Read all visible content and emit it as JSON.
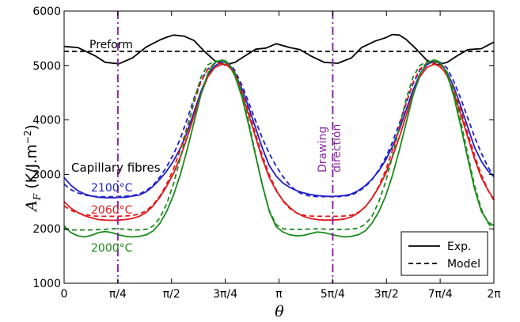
{
  "chart_data": {
    "type": "line",
    "title": "",
    "xlabel": "θ",
    "ylabel_main": "A",
    "ylabel_sub": "F",
    "ylabel_unit": " (K/J.m",
    "ylabel_exp": "−2",
    "ylabel_close": ")",
    "xlim": [
      0,
      6.2832
    ],
    "ylim": [
      1000,
      6000
    ],
    "x_ticks": [
      {
        "value": 0,
        "label": "0"
      },
      {
        "value": 0.7854,
        "label": "π/4"
      },
      {
        "value": 1.5708,
        "label": "π/2"
      },
      {
        "value": 2.3562,
        "label": "3π/4"
      },
      {
        "value": 3.1416,
        "label": "π"
      },
      {
        "value": 3.927,
        "label": "5π/4"
      },
      {
        "value": 4.7124,
        "label": "3π/2"
      },
      {
        "value": 5.4978,
        "label": "7π/4"
      },
      {
        "value": 6.2832,
        "label": "2π"
      }
    ],
    "y_ticks": [
      {
        "value": 1000,
        "label": "1000"
      },
      {
        "value": 2000,
        "label": "2000"
      },
      {
        "value": 3000,
        "label": "3000"
      },
      {
        "value": 4000,
        "label": "4000"
      },
      {
        "value": 5000,
        "label": "5000"
      },
      {
        "value": 6000,
        "label": "6000"
      }
    ],
    "grid": false,
    "legend": {
      "position": "bottom-right",
      "entries": [
        {
          "label": "Exp.",
          "style": "solid"
        },
        {
          "label": "Model",
          "style": "dashed"
        }
      ]
    },
    "vertical_lines": [
      {
        "x": 0.7854,
        "color": "#8b27a5",
        "style": "dash-dot"
      },
      {
        "x": 3.927,
        "color": "#8b27a5",
        "style": "dash-dot"
      }
    ],
    "annotations": {
      "preform": "Preform",
      "capillary": "Capillary fibres",
      "t2100": "2100°C",
      "t2060": "2060°C",
      "t2000": "2000°C",
      "drawing_line1": "Drawing",
      "drawing_line2": "direction"
    },
    "series": [
      {
        "name": "Preform",
        "curve": "exp",
        "color": "#000000",
        "style": "solid",
        "x": [
          0,
          0.2,
          0.45,
          0.6,
          0.8,
          1.0,
          1.2,
          1.4,
          1.5,
          1.6,
          1.75,
          1.9,
          2.05,
          2.2,
          2.35,
          2.5,
          2.65,
          2.8,
          2.95,
          3.1,
          3.3,
          3.45,
          3.6,
          3.8,
          4.0,
          4.2,
          4.35,
          4.55,
          4.7,
          4.8,
          4.9,
          5.0,
          5.15,
          5.3,
          5.45,
          5.6,
          5.75,
          5.9,
          6.1,
          6.2832
        ],
        "y": [
          5350,
          5330,
          5180,
          5060,
          5030,
          5140,
          5340,
          5470,
          5520,
          5560,
          5540,
          5460,
          5260,
          5090,
          5010,
          5060,
          5180,
          5300,
          5320,
          5400,
          5330,
          5290,
          5180,
          5060,
          5040,
          5140,
          5330,
          5450,
          5510,
          5570,
          5560,
          5480,
          5300,
          5100,
          5010,
          5060,
          5180,
          5290,
          5310,
          5430
        ]
      },
      {
        "name": "Preform",
        "curve": "model",
        "color": "#000000",
        "style": "dashed",
        "x": [
          0,
          6.2832
        ],
        "y": [
          5260,
          5260
        ]
      },
      {
        "name": "2100°C",
        "curve": "exp",
        "color": "#1f1fcc",
        "style": "solid",
        "x": [
          0,
          0.1,
          0.2,
          0.3,
          0.4,
          0.5,
          0.6,
          0.7,
          0.8,
          0.9,
          1.0,
          1.1,
          1.2,
          1.3,
          1.4,
          1.5,
          1.6,
          1.7,
          1.8,
          1.9,
          2.0,
          2.1,
          2.2,
          2.3,
          2.35,
          2.4,
          2.45,
          2.5,
          2.6,
          2.7,
          2.8,
          2.9,
          3.0,
          3.1,
          3.2,
          3.3,
          3.4,
          3.5,
          3.6,
          3.7,
          3.8,
          3.9,
          4.0,
          4.1,
          4.2,
          4.3,
          4.4,
          4.5,
          4.6,
          4.7,
          4.8,
          4.9,
          5.0,
          5.1,
          5.2,
          5.3,
          5.4,
          5.45,
          5.5,
          5.55,
          5.6,
          5.7,
          5.8,
          5.9,
          6.0,
          6.1,
          6.2,
          6.2832
        ],
        "y": [
          2940,
          2800,
          2700,
          2640,
          2600,
          2580,
          2570,
          2570,
          2575,
          2580,
          2600,
          2620,
          2680,
          2780,
          2910,
          3060,
          3250,
          3480,
          3780,
          4150,
          4520,
          4820,
          4990,
          5060,
          5060,
          5030,
          4960,
          4850,
          4570,
          4230,
          3850,
          3480,
          3160,
          2970,
          2840,
          2760,
          2700,
          2660,
          2630,
          2610,
          2600,
          2595,
          2600,
          2610,
          2640,
          2700,
          2790,
          2910,
          3060,
          3260,
          3510,
          3820,
          4180,
          4540,
          4840,
          5010,
          5080,
          5070,
          5030,
          4960,
          4870,
          4600,
          4250,
          3870,
          3500,
          3240,
          3060,
          2960
        ]
      },
      {
        "name": "2100°C",
        "curve": "model",
        "color": "#1f1fcc",
        "style": "dashed",
        "x": [
          0,
          0.1,
          0.2,
          0.3,
          0.4,
          0.5,
          0.6,
          0.7,
          0.8,
          0.9,
          1.0,
          1.1,
          1.2,
          1.3,
          1.4,
          1.5,
          1.6,
          1.7,
          1.8,
          1.9,
          2.0,
          2.1,
          2.2,
          2.3,
          2.35,
          2.4,
          2.45,
          2.5,
          2.6,
          2.7,
          2.8,
          2.9,
          3.0,
          3.1,
          3.2,
          3.3,
          3.4,
          3.5,
          3.6,
          3.7,
          3.8,
          3.9,
          4.0,
          4.1,
          4.2,
          4.3,
          4.4,
          4.5,
          4.6,
          4.7,
          4.8,
          4.9,
          5.0,
          5.1,
          5.2,
          5.3,
          5.4,
          5.45,
          5.5,
          5.55,
          5.6,
          5.7,
          5.8,
          5.9,
          6.0,
          6.1,
          6.2,
          6.2832
        ],
        "y": [
          2820,
          2720,
          2660,
          2620,
          2600,
          2590,
          2590,
          2590,
          2595,
          2600,
          2610,
          2640,
          2700,
          2800,
          2950,
          3140,
          3370,
          3660,
          4020,
          4400,
          4720,
          4930,
          5040,
          5070,
          5060,
          5040,
          4990,
          4900,
          4640,
          4320,
          3980,
          3660,
          3380,
          3150,
          2960,
          2800,
          2690,
          2630,
          2600,
          2590,
          2590,
          2590,
          2590,
          2600,
          2620,
          2680,
          2770,
          2900,
          3080,
          3310,
          3590,
          3930,
          4310,
          4660,
          4910,
          5040,
          5080,
          5080,
          5060,
          5010,
          4950,
          4700,
          4390,
          4040,
          3690,
          3390,
          3130,
          2960
        ]
      },
      {
        "name": "2060°C",
        "curve": "exp",
        "color": "#e01919",
        "style": "solid",
        "x": [
          0,
          0.1,
          0.2,
          0.3,
          0.4,
          0.5,
          0.6,
          0.7,
          0.8,
          0.9,
          1.0,
          1.1,
          1.2,
          1.3,
          1.4,
          1.5,
          1.6,
          1.7,
          1.8,
          1.9,
          2.0,
          2.1,
          2.2,
          2.3,
          2.35,
          2.4,
          2.45,
          2.5,
          2.6,
          2.7,
          2.8,
          2.9,
          3.0,
          3.1,
          3.2,
          3.3,
          3.4,
          3.5,
          3.6,
          3.7,
          3.8,
          3.9,
          4.0,
          4.1,
          4.2,
          4.3,
          4.4,
          4.5,
          4.6,
          4.7,
          4.8,
          4.9,
          5.0,
          5.1,
          5.2,
          5.3,
          5.4,
          5.45,
          5.5,
          5.55,
          5.6,
          5.7,
          5.8,
          5.9,
          6.0,
          6.1,
          6.2,
          6.2832
        ],
        "y": [
          2500,
          2380,
          2300,
          2240,
          2200,
          2170,
          2160,
          2155,
          2160,
          2170,
          2190,
          2230,
          2300,
          2420,
          2580,
          2780,
          3020,
          3320,
          3680,
          4080,
          4470,
          4790,
          4960,
          5020,
          5020,
          4990,
          4920,
          4800,
          4490,
          4090,
          3680,
          3280,
          2940,
          2700,
          2520,
          2390,
          2290,
          2230,
          2190,
          2170,
          2160,
          2160,
          2165,
          2180,
          2220,
          2290,
          2400,
          2560,
          2760,
          3010,
          3320,
          3680,
          4080,
          4470,
          4790,
          4960,
          5020,
          5010,
          4970,
          4910,
          4810,
          4490,
          4100,
          3690,
          3290,
          2940,
          2700,
          2550
        ]
      },
      {
        "name": "2060°C",
        "curve": "model",
        "color": "#e01919",
        "style": "dashed",
        "x": [
          0,
          0.1,
          0.2,
          0.3,
          0.4,
          0.5,
          0.6,
          0.7,
          0.8,
          0.9,
          1.0,
          1.1,
          1.2,
          1.3,
          1.4,
          1.5,
          1.6,
          1.7,
          1.8,
          1.9,
          2.0,
          2.1,
          2.2,
          2.3,
          2.35,
          2.4,
          2.45,
          2.5,
          2.6,
          2.7,
          2.8,
          2.9,
          3.0,
          3.1,
          3.2,
          3.3,
          3.4,
          3.5,
          3.6,
          3.7,
          3.8,
          3.9,
          4.0,
          4.1,
          4.2,
          4.3,
          4.4,
          4.5,
          4.6,
          4.7,
          4.8,
          4.9,
          5.0,
          5.1,
          5.2,
          5.3,
          5.4,
          5.45,
          5.5,
          5.55,
          5.6,
          5.7,
          5.8,
          5.9,
          6.0,
          6.1,
          6.2,
          6.2832
        ],
        "y": [
          2420,
          2340,
          2290,
          2260,
          2240,
          2230,
          2230,
          2230,
          2230,
          2235,
          2245,
          2270,
          2330,
          2440,
          2600,
          2820,
          3100,
          3460,
          3880,
          4320,
          4700,
          4930,
          5030,
          5040,
          5030,
          5010,
          4950,
          4850,
          4540,
          4150,
          3740,
          3340,
          2990,
          2720,
          2510,
          2370,
          2290,
          2250,
          2235,
          2230,
          2230,
          2230,
          2230,
          2235,
          2250,
          2300,
          2400,
          2560,
          2780,
          3070,
          3440,
          3870,
          4300,
          4680,
          4930,
          5040,
          5050,
          5040,
          5010,
          4950,
          4870,
          4560,
          4170,
          3760,
          3350,
          2990,
          2710,
          2520
        ]
      },
      {
        "name": "2000°C",
        "curve": "exp",
        "color": "#1c8a1c",
        "style": "solid",
        "x": [
          0,
          0.1,
          0.2,
          0.3,
          0.4,
          0.5,
          0.6,
          0.7,
          0.8,
          0.9,
          1.0,
          1.1,
          1.2,
          1.3,
          1.4,
          1.5,
          1.6,
          1.7,
          1.8,
          1.9,
          2.0,
          2.1,
          2.2,
          2.3,
          2.35,
          2.4,
          2.45,
          2.5,
          2.6,
          2.7,
          2.8,
          2.9,
          3.0,
          3.1,
          3.2,
          3.3,
          3.4,
          3.5,
          3.6,
          3.7,
          3.8,
          3.9,
          4.0,
          4.1,
          4.2,
          4.3,
          4.4,
          4.5,
          4.6,
          4.7,
          4.8,
          4.9,
          5.0,
          5.1,
          5.2,
          5.3,
          5.4,
          5.45,
          5.5,
          5.55,
          5.6,
          5.7,
          5.8,
          5.9,
          6.0,
          6.1,
          6.2,
          6.2832
        ],
        "y": [
          2050,
          1930,
          1870,
          1850,
          1880,
          1930,
          1950,
          1930,
          1890,
          1860,
          1850,
          1860,
          1890,
          1960,
          2100,
          2320,
          2620,
          3000,
          3460,
          3960,
          4460,
          4850,
          5050,
          5100,
          5090,
          5040,
          4950,
          4800,
          4420,
          3900,
          3340,
          2800,
          2320,
          2040,
          1940,
          1890,
          1870,
          1880,
          1910,
          1940,
          1930,
          1900,
          1870,
          1850,
          1860,
          1890,
          1960,
          2100,
          2310,
          2600,
          2980,
          3440,
          3940,
          4440,
          4830,
          5040,
          5100,
          5090,
          5050,
          4970,
          4840,
          4420,
          3880,
          3300,
          2740,
          2320,
          2120,
          2060
        ]
      },
      {
        "name": "2000°C",
        "curve": "model",
        "color": "#1c8a1c",
        "style": "dashed",
        "x": [
          0,
          0.1,
          0.2,
          0.3,
          0.4,
          0.5,
          0.6,
          0.7,
          0.8,
          0.9,
          1.0,
          1.1,
          1.2,
          1.3,
          1.4,
          1.5,
          1.6,
          1.7,
          1.8,
          1.9,
          2.0,
          2.1,
          2.2,
          2.3,
          2.35,
          2.4,
          2.45,
          2.5,
          2.6,
          2.7,
          2.8,
          2.9,
          3.0,
          3.1,
          3.2,
          3.3,
          3.4,
          3.5,
          3.6,
          3.7,
          3.8,
          3.9,
          4.0,
          4.1,
          4.2,
          4.3,
          4.4,
          4.5,
          4.6,
          4.7,
          4.8,
          4.9,
          5.0,
          5.1,
          5.2,
          5.3,
          5.4,
          5.45,
          5.5,
          5.55,
          5.6,
          5.7,
          5.8,
          5.9,
          6.0,
          6.1,
          6.2,
          6.2832
        ],
        "y": [
          1990,
          1980,
          1980,
          1980,
          1980,
          1985,
          1990,
          2000,
          2000,
          1990,
          1980,
          1980,
          1990,
          2050,
          2200,
          2460,
          2830,
          3300,
          3830,
          4360,
          4780,
          5010,
          5080,
          5080,
          5060,
          5030,
          4960,
          4860,
          4500,
          3960,
          3360,
          2790,
          2330,
          2080,
          2000,
          1990,
          1990,
          1990,
          1995,
          2000,
          1995,
          1990,
          1985,
          1990,
          1995,
          2010,
          2080,
          2230,
          2490,
          2860,
          3330,
          3860,
          4380,
          4780,
          5000,
          5070,
          5080,
          5060,
          5030,
          4970,
          4880,
          4510,
          3970,
          3370,
          2800,
          2360,
          2100,
          1990
        ]
      }
    ]
  }
}
